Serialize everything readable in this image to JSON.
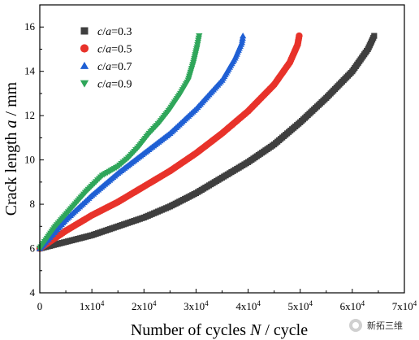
{
  "chart_data": {
    "type": "scatter",
    "xlabel_parts": [
      "Number of cycles ",
      "N",
      " / cycle"
    ],
    "ylabel_parts": [
      "Crack length ",
      "a",
      " / mm"
    ],
    "xlim": [
      0,
      70000
    ],
    "ylim": [
      4,
      17
    ],
    "x_ticks": [
      0,
      10000,
      20000,
      30000,
      40000,
      50000,
      60000,
      70000
    ],
    "x_tick_labels": [
      "0",
      "1x10^4",
      "2x10^4",
      "3x10^4",
      "4x10^4",
      "5x10^4",
      "6x10^4",
      "7x10^4"
    ],
    "y_ticks": [
      4,
      6,
      8,
      10,
      12,
      14,
      16
    ],
    "y_tick_labels": [
      "4",
      "6",
      "8",
      "10",
      "12",
      "14",
      "16"
    ],
    "legend_position": "top-left",
    "series": [
      {
        "name": "c/a=0.3",
        "ratio": "0.3",
        "marker": "square",
        "color": "#3f3f3f",
        "points": [
          [
            0,
            6.0
          ],
          [
            5000,
            6.3
          ],
          [
            10000,
            6.6
          ],
          [
            15000,
            7.0
          ],
          [
            20000,
            7.4
          ],
          [
            25000,
            7.9
          ],
          [
            30000,
            8.5
          ],
          [
            35000,
            9.2
          ],
          [
            40000,
            9.9
          ],
          [
            45000,
            10.7
          ],
          [
            50000,
            11.7
          ],
          [
            55000,
            12.8
          ],
          [
            60000,
            14.0
          ],
          [
            63000,
            15.0
          ],
          [
            64200,
            15.6
          ]
        ]
      },
      {
        "name": "c/a=0.5",
        "ratio": "0.5",
        "marker": "circle",
        "color": "#e8322a",
        "points": [
          [
            0,
            6.0
          ],
          [
            5000,
            6.8
          ],
          [
            10000,
            7.5
          ],
          [
            15000,
            8.1
          ],
          [
            20000,
            8.8
          ],
          [
            25000,
            9.5
          ],
          [
            30000,
            10.3
          ],
          [
            35000,
            11.2
          ],
          [
            40000,
            12.2
          ],
          [
            45000,
            13.4
          ],
          [
            48000,
            14.4
          ],
          [
            49500,
            15.2
          ],
          [
            49800,
            15.6
          ]
        ]
      },
      {
        "name": "c/a=0.7",
        "ratio": "0.7",
        "marker": "triangle-up",
        "color": "#1f5fd4",
        "points": [
          [
            0,
            6.0
          ],
          [
            5000,
            7.3
          ],
          [
            10000,
            8.4
          ],
          [
            15000,
            9.4
          ],
          [
            20000,
            10.3
          ],
          [
            25000,
            11.2
          ],
          [
            30000,
            12.3
          ],
          [
            35000,
            13.6
          ],
          [
            37500,
            14.6
          ],
          [
            38800,
            15.3
          ],
          [
            39000,
            15.6
          ]
        ]
      },
      {
        "name": "c/a=0.9",
        "ratio": "0.9",
        "marker": "triangle-down",
        "color": "#2fa65a",
        "points": [
          [
            0,
            6.0
          ],
          [
            3000,
            7.0
          ],
          [
            6000,
            7.8
          ],
          [
            9000,
            8.6
          ],
          [
            12000,
            9.3
          ],
          [
            15000,
            9.7
          ],
          [
            17000,
            10.1
          ],
          [
            19000,
            10.6
          ],
          [
            21000,
            11.2
          ],
          [
            23000,
            11.7
          ],
          [
            25000,
            12.3
          ],
          [
            27000,
            13.0
          ],
          [
            28500,
            13.6
          ],
          [
            29500,
            14.4
          ],
          [
            30200,
            15.1
          ],
          [
            30600,
            15.6
          ]
        ]
      }
    ]
  },
  "watermark": {
    "text": "新拓三维"
  }
}
